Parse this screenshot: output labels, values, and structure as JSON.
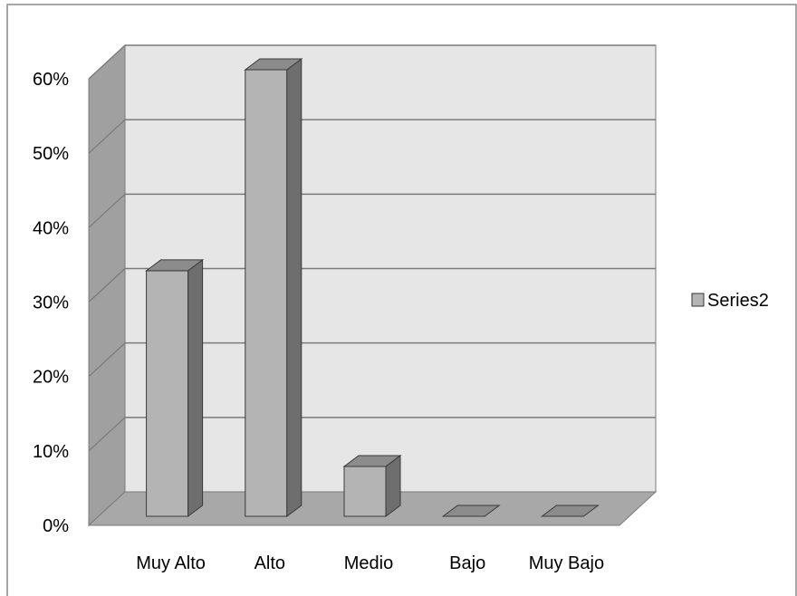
{
  "chart_data": {
    "type": "bar",
    "style": "3d-column",
    "categories": [
      "Muy Alto",
      "Alto",
      "Medio",
      "Bajo",
      "Muy Bajo"
    ],
    "series": [
      {
        "name": "Series2",
        "values": [
          0.33,
          0.6,
          0.067,
          0.0,
          0.0
        ]
      }
    ],
    "y_ticks": [
      "0%",
      "10%",
      "20%",
      "30%",
      "40%",
      "50%",
      "60%"
    ],
    "ylim": [
      0,
      0.6
    ],
    "grid": true,
    "legend_position": "right",
    "colors": {
      "bar_front": "#b4b4b4",
      "bar_side": "#6e6e6e",
      "bar_top": "#8c8c8c",
      "wall_back": "#e6e6e6",
      "wall_side": "#a0a0a0",
      "floor": "#a8a8a8",
      "gridline": "#7a7a7a"
    }
  }
}
